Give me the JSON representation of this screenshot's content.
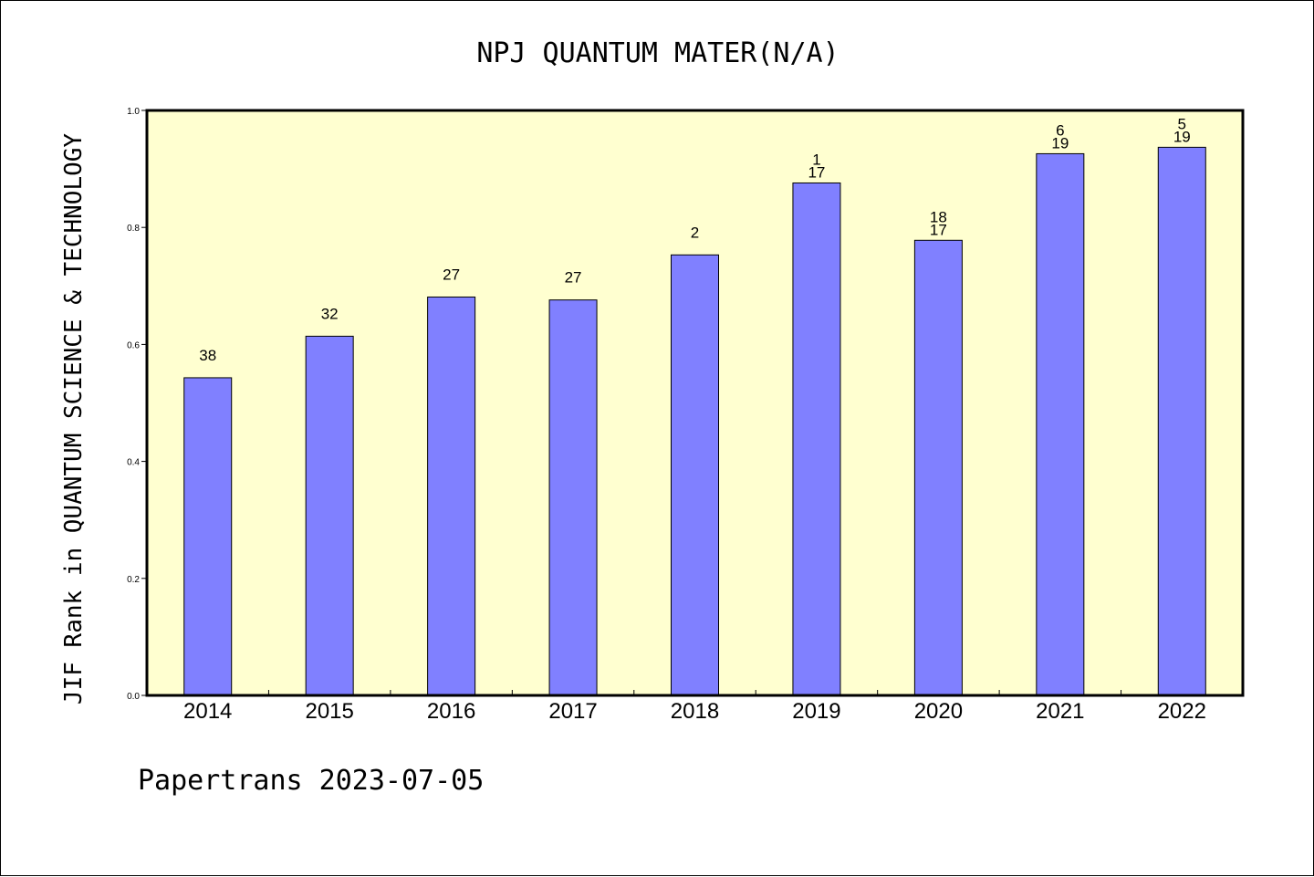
{
  "chart_data": {
    "type": "bar",
    "title": "NPJ QUANTUM MATER(N/A)",
    "xlabel": "",
    "ylabel": "JIF Rank in QUANTUM SCIENCE & TECHNOLOGY",
    "ylim": [
      0,
      1.0
    ],
    "yticks": [
      "0.0",
      "0.2",
      "0.4",
      "0.6",
      "0.8",
      "1.0"
    ],
    "categories": [
      "2014",
      "2015",
      "2016",
      "2017",
      "2018",
      "2019",
      "2020",
      "2021",
      "2022"
    ],
    "values": [
      0.543,
      0.614,
      0.681,
      0.676,
      0.753,
      0.876,
      0.778,
      0.926,
      0.937
    ],
    "bar_labels": [
      [
        "38"
      ],
      [
        "32"
      ],
      [
        "27"
      ],
      [
        "27"
      ],
      [
        "2"
      ],
      [
        "1",
        "17"
      ],
      [
        "18",
        "17"
      ],
      [
        "6",
        "19"
      ],
      [
        "5",
        "19"
      ]
    ],
    "grid": false,
    "colors": {
      "bar_fill": "#8080ff",
      "bar_stroke": "#000000",
      "plot_background": "#ffffd0"
    }
  },
  "footer": {
    "text": "Papertrans 2023-07-05"
  }
}
